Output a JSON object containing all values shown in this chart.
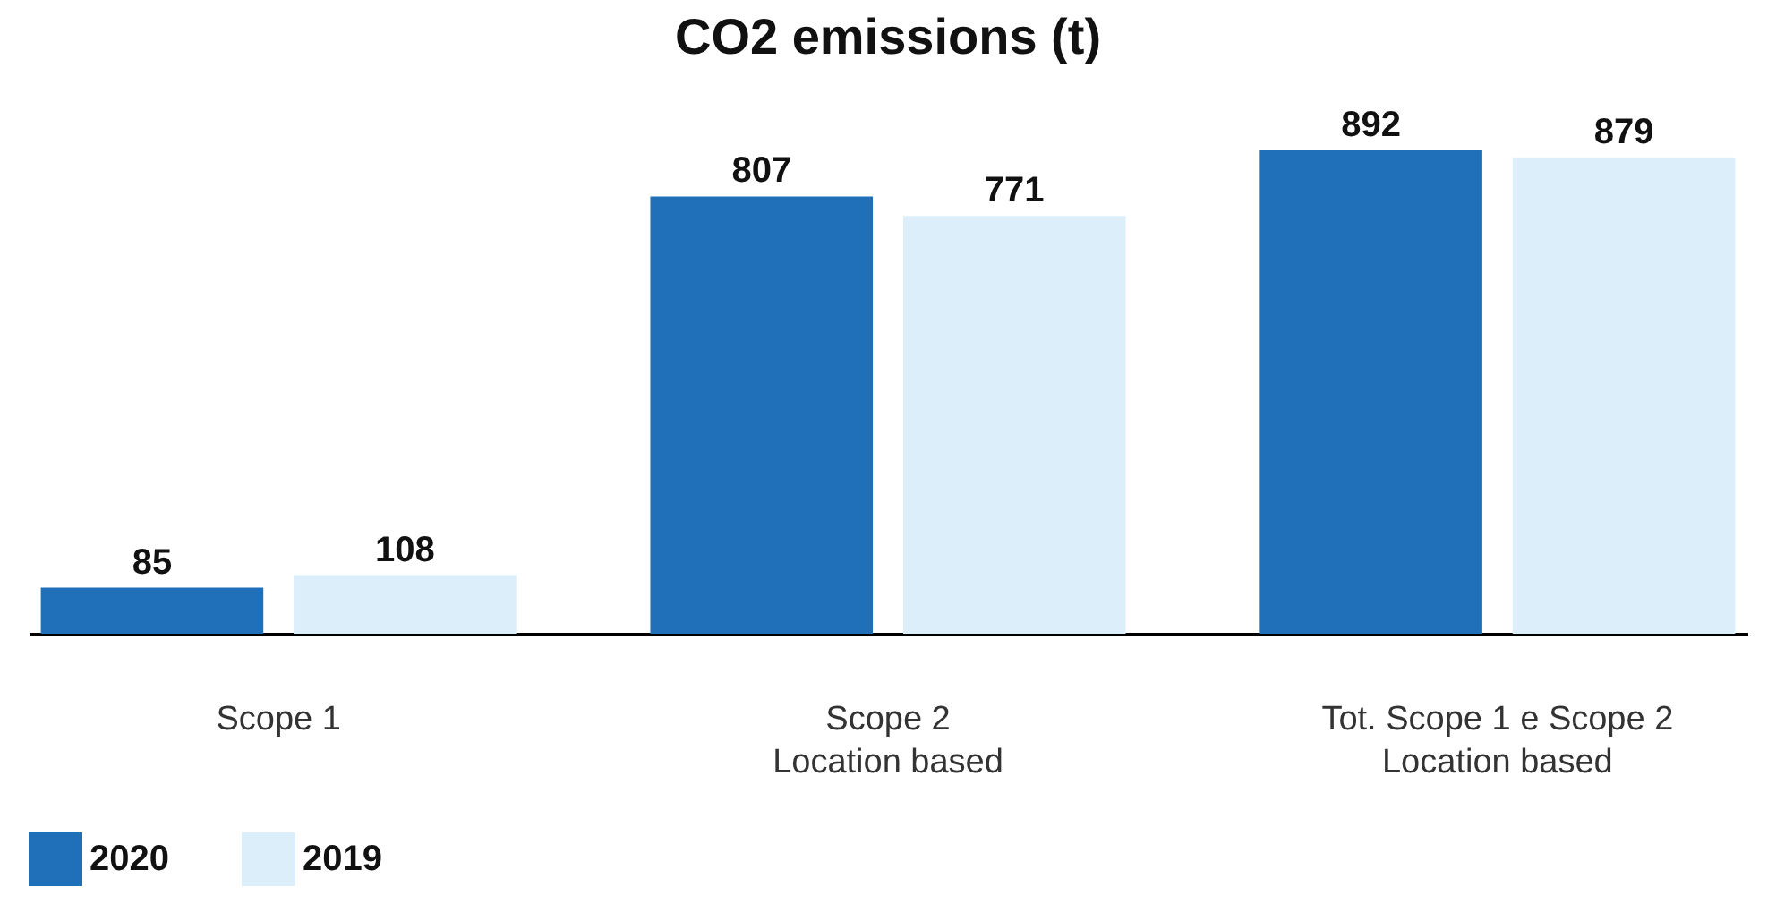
{
  "chart_data": {
    "type": "bar",
    "title": "CO2 emissions (t)",
    "categories": [
      "Scope 1",
      "Scope 2\nLocation based",
      "Tot. Scope 1 e Scope 2\nLocation based"
    ],
    "series": [
      {
        "name": "2020",
        "color": "#1f70b8",
        "values": [
          85,
          807,
          892
        ]
      },
      {
        "name": "2019",
        "color": "#dceefa",
        "values": [
          108,
          771,
          879
        ]
      }
    ],
    "data_labels": true,
    "legend": "bottom",
    "tick_labels": "x"
  }
}
